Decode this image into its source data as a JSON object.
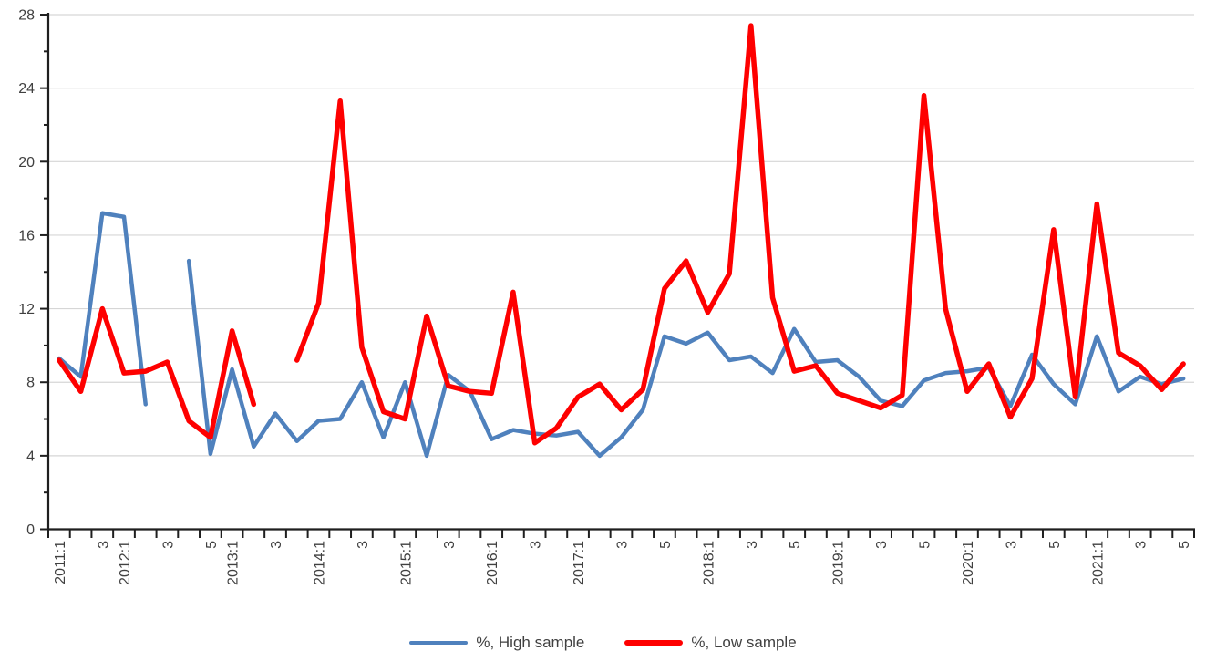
{
  "chart_data": {
    "type": "line",
    "title": "",
    "xlabel": "",
    "ylabel": "",
    "ylim": [
      0,
      28
    ],
    "ytick_step": 4,
    "yminor_step": 2,
    "grid": "horizontal",
    "legend_position": "bottom",
    "y_tick_labels": [
      "0",
      "4",
      "8",
      "12",
      "16",
      "20",
      "24",
      "28"
    ],
    "x_categories": [
      "2011:1",
      "2011:2",
      "2011:3",
      "2012:1",
      "2012:2",
      "2012:3",
      "2012:4",
      "2012:5",
      "2013:1",
      "2013:2",
      "2013:3",
      "2013:4",
      "2014:1",
      "2014:2",
      "2014:3",
      "2014:4",
      "2015:1",
      "2015:2",
      "2015:3",
      "2015:4",
      "2016:1",
      "2016:2",
      "2016:3",
      "2016:4",
      "2017:1",
      "2017:2",
      "2017:3",
      "2017:4",
      "2017:5",
      "2017:6",
      "2018:1",
      "2018:2",
      "2018:3",
      "2018:4",
      "2018:5",
      "2018:6",
      "2019:1",
      "2019:2",
      "2019:3",
      "2019:4",
      "2019:5",
      "2019:6",
      "2020:1",
      "2020:2",
      "2020:3",
      "2020:4",
      "2020:5",
      "2020:6",
      "2021:1",
      "2021:2",
      "2021:3",
      "2021:4",
      "2021:5"
    ],
    "x_tick_labels": [
      "2011:1",
      "",
      "3",
      "2012:1",
      "",
      "3",
      "",
      "5",
      "2013:1",
      "",
      "3",
      "",
      "2014:1",
      "",
      "3",
      "",
      "2015:1",
      "",
      "3",
      "",
      "2016:1",
      "",
      "3",
      "",
      "2017:1",
      "",
      "3",
      "",
      "5",
      "",
      "2018:1",
      "",
      "3",
      "",
      "5",
      "",
      "2019:1",
      "",
      "3",
      "",
      "5",
      "",
      "2020:1",
      "",
      "3",
      "",
      "5",
      "",
      "2021:1",
      "",
      "3",
      "",
      "5"
    ],
    "series": [
      {
        "name": "%, High sample",
        "color": "#4F81BD",
        "stroke_width": 4.5,
        "values": [
          9.3,
          8.3,
          17.2,
          17.0,
          6.8,
          null,
          14.6,
          4.1,
          8.7,
          4.5,
          6.3,
          4.8,
          5.9,
          6.0,
          8.0,
          5.0,
          8.0,
          4.0,
          8.4,
          7.5,
          4.9,
          5.4,
          5.2,
          5.1,
          5.3,
          4.0,
          5.0,
          6.5,
          10.5,
          10.1,
          10.7,
          9.2,
          9.4,
          8.5,
          10.9,
          9.1,
          9.2,
          8.3,
          7.0,
          6.7,
          8.1,
          8.5,
          8.6,
          8.8,
          6.7,
          9.5,
          7.9,
          6.8,
          10.5,
          7.5,
          8.3,
          7.9,
          8.2
        ]
      },
      {
        "name": "%, Low sample",
        "color": "#FE0000",
        "stroke_width": 5.5,
        "values": [
          9.2,
          7.5,
          12.0,
          8.5,
          8.6,
          9.1,
          5.9,
          5.0,
          10.8,
          6.8,
          null,
          9.2,
          12.3,
          23.3,
          9.9,
          6.4,
          6.0,
          11.6,
          7.8,
          7.5,
          7.4,
          12.9,
          4.7,
          5.5,
          7.2,
          7.9,
          6.5,
          7.6,
          13.1,
          14.6,
          11.8,
          13.9,
          27.4,
          12.6,
          8.6,
          8.9,
          7.4,
          7.0,
          6.6,
          7.3,
          23.6,
          12.0,
          7.5,
          9.0,
          6.1,
          8.2,
          16.3,
          7.2,
          17.7,
          9.6,
          8.9,
          7.6,
          9.0
        ]
      }
    ],
    "style": {
      "background_color": "#FFFFFF",
      "gridline_color": "#D6D6D6",
      "axis_color": "#1F1F1F",
      "tick_label_color": "#404040",
      "tick_label_font_size": 16
    }
  },
  "legend": {
    "high_label": "%, High sample",
    "low_label": "%, Low sample"
  }
}
